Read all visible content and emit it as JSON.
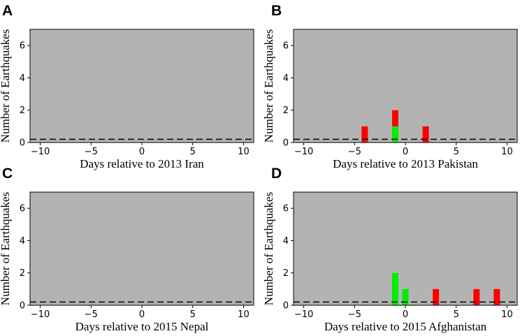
{
  "colors": {
    "background": "#b3b3b3",
    "frame": "#000000",
    "baseline": "#000000",
    "increase": "#00ee00",
    "decrease": "#ff0000"
  },
  "chart_data": [
    {
      "type": "bar",
      "panel": "A",
      "xlabel": "Days relative to 2013 Iran",
      "ylabel": "Number of Earthquakes",
      "xlim": [
        -11,
        11
      ],
      "ylim": [
        0,
        7
      ],
      "xticks": [
        -10,
        -5,
        0,
        5,
        10
      ],
      "xtick_labels": [
        "−10",
        "−5",
        "0",
        "5",
        "10"
      ],
      "yticks": [
        0,
        2,
        4,
        6
      ],
      "ytick_labels": [
        "0",
        "2",
        "4",
        "6"
      ],
      "baseline": 0.2,
      "series": [
        {
          "name": "increase",
          "color": "#00ee00",
          "points": []
        },
        {
          "name": "decrease",
          "color": "#ff0000",
          "points": []
        }
      ]
    },
    {
      "type": "bar",
      "panel": "B",
      "xlabel": "Days relative to 2013 Pakistan",
      "ylabel": "Number of Earthquakes",
      "xlim": [
        -11,
        11
      ],
      "ylim": [
        0,
        7
      ],
      "xticks": [
        -10,
        -5,
        0,
        5,
        10
      ],
      "xtick_labels": [
        "−10",
        "−5",
        "0",
        "5",
        "10"
      ],
      "yticks": [
        0,
        2,
        4,
        6
      ],
      "ytick_labels": [
        "0",
        "2",
        "4",
        "6"
      ],
      "baseline": 0.2,
      "series": [
        {
          "name": "increase",
          "color": "#00ee00",
          "points": [
            {
              "x": -1,
              "value": 1
            }
          ]
        },
        {
          "name": "decrease",
          "color": "#ff0000",
          "points": [
            {
              "x": -4,
              "value": 1
            },
            {
              "x": -1,
              "value": 1
            },
            {
              "x": 2,
              "value": 1
            }
          ]
        }
      ]
    },
    {
      "type": "bar",
      "panel": "C",
      "xlabel": "Days relative to 2015 Nepal",
      "ylabel": "Number of Earthquakes",
      "xlim": [
        -11,
        11
      ],
      "ylim": [
        0,
        7
      ],
      "xticks": [
        -10,
        -5,
        0,
        5,
        10
      ],
      "xtick_labels": [
        "−10",
        "−5",
        "0",
        "5",
        "10"
      ],
      "yticks": [
        0,
        2,
        4,
        6
      ],
      "ytick_labels": [
        "0",
        "2",
        "4",
        "6"
      ],
      "baseline": 0.2,
      "series": [
        {
          "name": "increase",
          "color": "#00ee00",
          "points": []
        },
        {
          "name": "decrease",
          "color": "#ff0000",
          "points": []
        }
      ]
    },
    {
      "type": "bar",
      "panel": "D",
      "xlabel": "Days relative to 2015 Afghanistan",
      "ylabel": "Number of Earthquakes",
      "xlim": [
        -11,
        11
      ],
      "ylim": [
        0,
        7
      ],
      "xticks": [
        -10,
        -5,
        0,
        5,
        10
      ],
      "xtick_labels": [
        "−10",
        "−5",
        "0",
        "5",
        "10"
      ],
      "yticks": [
        0,
        2,
        4,
        6
      ],
      "ytick_labels": [
        "0",
        "2",
        "4",
        "6"
      ],
      "baseline": 0.2,
      "series": [
        {
          "name": "increase",
          "color": "#00ee00",
          "points": [
            {
              "x": -1,
              "value": 2
            },
            {
              "x": 0,
              "value": 1
            }
          ]
        },
        {
          "name": "decrease",
          "color": "#ff0000",
          "points": [
            {
              "x": 3,
              "value": 1
            },
            {
              "x": 7,
              "value": 1
            },
            {
              "x": 9,
              "value": 1
            }
          ]
        }
      ]
    }
  ]
}
